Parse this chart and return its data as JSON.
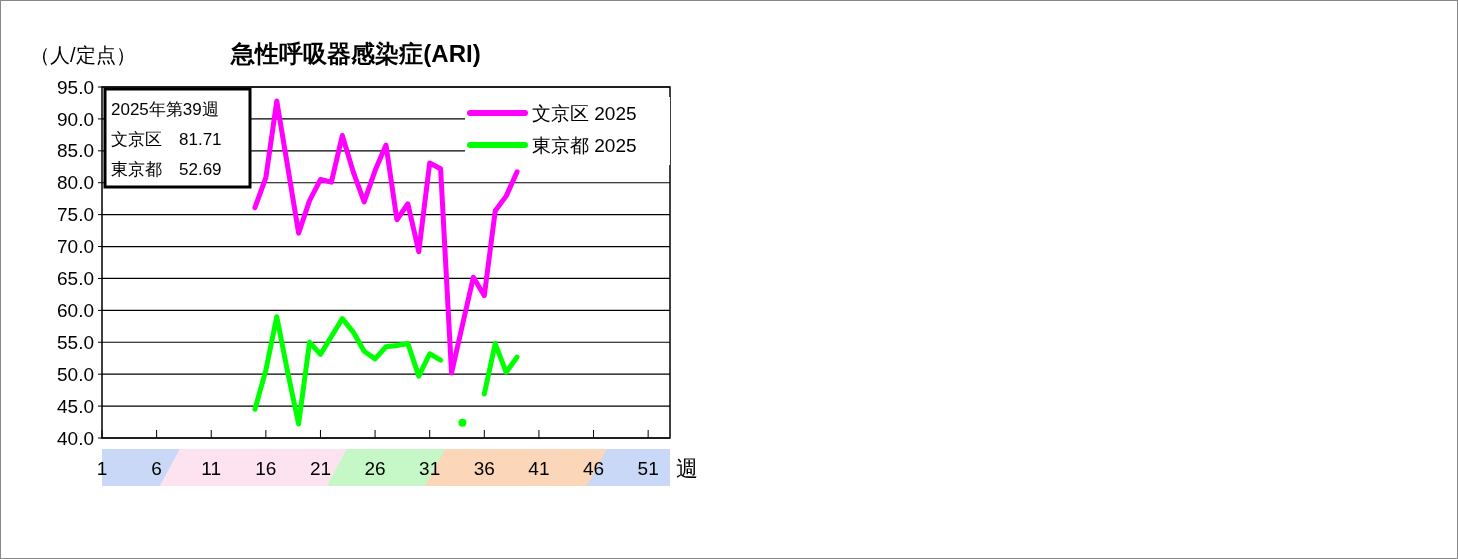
{
  "chart_data": {
    "type": "line",
    "title": "急性呼吸器感染症(ARI)",
    "ylabel": "（人/定点）",
    "xlabel": "週",
    "x": [
      15,
      16,
      17,
      18,
      19,
      20,
      21,
      22,
      23,
      24,
      25,
      26,
      27,
      28,
      29,
      30,
      31,
      32,
      33,
      34,
      35,
      36,
      37,
      38,
      39
    ],
    "series": [
      {
        "name": "文京区 2025",
        "color": "#ff00ff",
        "values": [
          76.1,
          80.8,
          92.8,
          82.5,
          72.1,
          77.2,
          80.5,
          80.1,
          87.4,
          81.7,
          77.0,
          81.9,
          85.9,
          74.2,
          76.7,
          69.2,
          83.1,
          82.2,
          50.2,
          57.7,
          65.2,
          62.3,
          75.6,
          77.9,
          81.71
        ]
      },
      {
        "name": "東京都 2025",
        "color": "#00ff00",
        "values": [
          44.5,
          50.6,
          59.0,
          50.3,
          42.2,
          55.0,
          53.1,
          55.9,
          58.7,
          56.6,
          53.6,
          52.4,
          54.3,
          54.5,
          54.8,
          49.7,
          53.2,
          52.2,
          null,
          42.4,
          null,
          46.9,
          54.8,
          50.3,
          52.69
        ]
      }
    ],
    "xlim": [
      1,
      53
    ],
    "xticks": [
      1,
      6,
      11,
      16,
      21,
      26,
      31,
      36,
      41,
      46,
      51
    ],
    "ylim": [
      40,
      95
    ],
    "yticks": [
      {
        "value": 40,
        "label": "40.0"
      },
      {
        "value": 45,
        "label": "45.0"
      },
      {
        "value": 50,
        "label": "50.0"
      },
      {
        "value": 55,
        "label": "55.0"
      },
      {
        "value": 60,
        "label": "60.0"
      },
      {
        "value": 65,
        "label": "65.0"
      },
      {
        "value": 70,
        "label": "70.0"
      },
      {
        "value": 75,
        "label": "75.0"
      },
      {
        "value": 80,
        "label": "80.0"
      },
      {
        "value": 85,
        "label": "85.0"
      },
      {
        "value": 90,
        "label": "90.0"
      },
      {
        "value": 95,
        "label": "95.0"
      }
    ],
    "grid": "y",
    "legend": "top right",
    "line_style": "solid",
    "marker": "none",
    "annotations": [
      "2025年第39週",
      "文京区　81.71",
      "東京都　52.69"
    ]
  }
}
